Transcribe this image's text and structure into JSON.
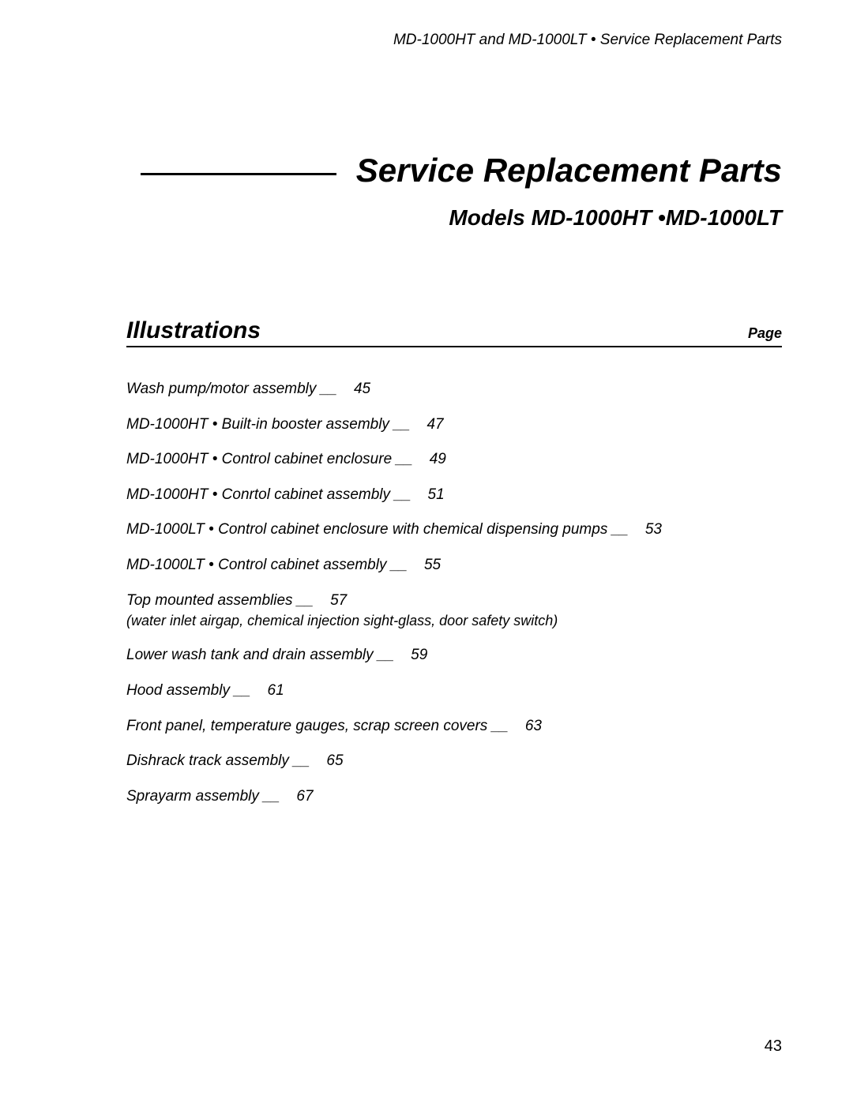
{
  "header": {
    "text": "MD-1000HT and MD-1000LT • Service Replacement Parts"
  },
  "title": {
    "main": "Service Replacement Parts",
    "subtitle": "Models MD-1000HT •MD-1000LT"
  },
  "section": {
    "heading": "Illustrations",
    "page_label": "Page"
  },
  "toc": [
    {
      "label": "Wash pump/motor assembly __",
      "page": "45"
    },
    {
      "label": "MD-1000HT • Built-in booster assembly __",
      "page": "47"
    },
    {
      "label": "MD-1000HT • Control cabinet enclosure __",
      "page": "49"
    },
    {
      "label": "MD-1000HT • Conrtol cabinet assembly __",
      "page": "51"
    },
    {
      "label": "MD-1000LT • Control cabinet enclosure with chemical dispensing pumps __",
      "page": "53"
    },
    {
      "label": "MD-1000LT • Control cabinet assembly __",
      "page": "55"
    },
    {
      "label": "Top mounted assemblies __",
      "page": "57",
      "sub": "(water inlet airgap, chemical injection sight-glass, door safety switch)"
    },
    {
      "label": "Lower wash tank and drain assembly __",
      "page": "59"
    },
    {
      "label": "Hood assembly __",
      "page": "61"
    },
    {
      "label": "Front panel, temperature gauges, scrap screen covers __",
      "page": "63"
    },
    {
      "label": "Dishrack track assembly __",
      "page": "65"
    },
    {
      "label": "Sprayarm assembly __",
      "page": "67"
    }
  ],
  "page_number": "43",
  "styles": {
    "body_font": "Arial, Helvetica, sans-serif",
    "text_color": "#000000",
    "background_color": "#ffffff",
    "header_fontsize": 19,
    "main_title_fontsize": 42,
    "subtitle_fontsize": 28,
    "section_title_fontsize": 30,
    "toc_fontsize": 19,
    "page_number_fontsize": 20,
    "rule_color": "#000000",
    "rule_thickness_main": 3,
    "rule_thickness_section": 2
  }
}
